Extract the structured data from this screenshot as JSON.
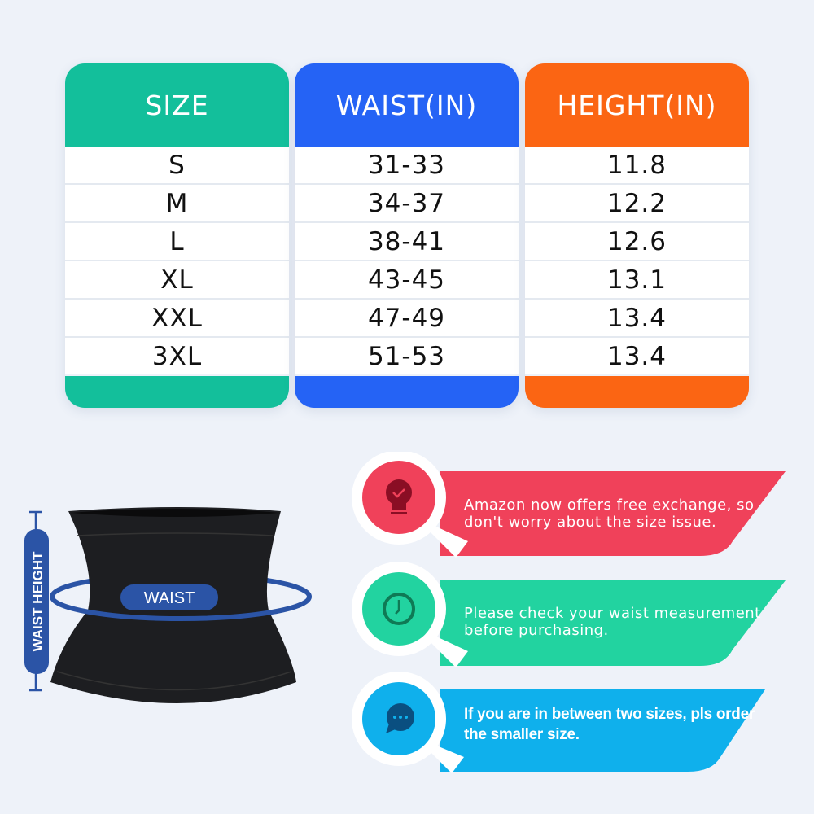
{
  "colors": {
    "size": "#13bf9b",
    "waist": "#2563f5",
    "height": "#fb6513",
    "accent_blue": "#2b54a6",
    "tip1": "#f0415a",
    "tip2": "#22d3a0",
    "tip3": "#0fb0ec"
  },
  "table": {
    "columns": [
      {
        "header": "SIZE",
        "values": [
          "S",
          "M",
          "L",
          "XL",
          "XXL",
          "3XL"
        ]
      },
      {
        "header": "WAIST(IN)",
        "values": [
          "31-33",
          "34-37",
          "38-41",
          "43-45",
          "47-49",
          "51-53"
        ]
      },
      {
        "header": "HEIGHT(IN)",
        "values": [
          "11.8",
          "12.2",
          "12.6",
          "13.1",
          "13.4",
          "13.4"
        ]
      }
    ]
  },
  "diagram": {
    "waist_label": "WAIST",
    "height_label": "WAIST HEIGHT"
  },
  "tips": [
    {
      "icon": "lightbulb-check-icon",
      "text1": "Amazon now offers free exchange, so",
      "text2": "don't worry about the size issue."
    },
    {
      "icon": "clock-icon",
      "text1": "Please check your waist measurement",
      "text2": "before purchasing."
    },
    {
      "icon": "chat-bubble-icon",
      "text1": "If you are in between two sizes, pls order",
      "text2": "the smaller size."
    }
  ]
}
